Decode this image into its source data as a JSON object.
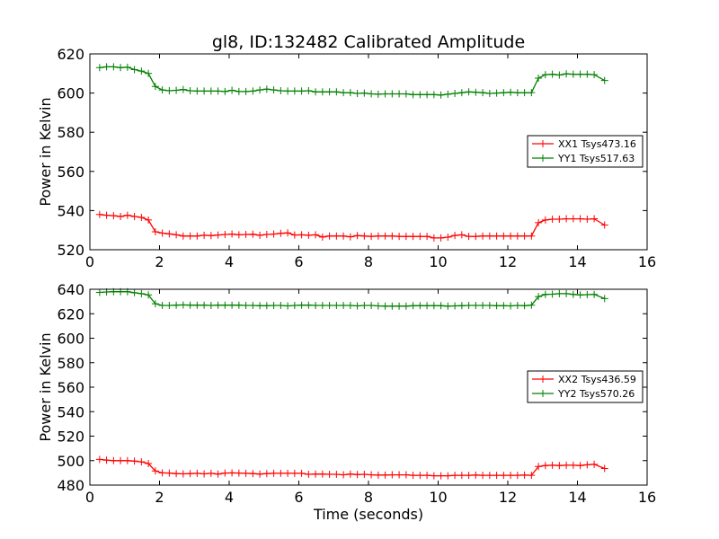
{
  "figure": {
    "title": "gl8, ID:132482 Calibrated Amplitude",
    "xlabel": "Time (seconds)"
  },
  "colors": {
    "red": "#ff0000",
    "green": "#008000"
  },
  "chart_data": [
    {
      "type": "line",
      "title": "gl8, ID:132482 Calibrated Amplitude",
      "xlabel": "",
      "ylabel": "Power in Kelvin",
      "xlim": [
        0,
        16
      ],
      "ylim": [
        520,
        620
      ],
      "xticks": [
        0,
        2,
        4,
        6,
        8,
        10,
        12,
        14,
        16
      ],
      "yticks": [
        520,
        540,
        560,
        580,
        600,
        620
      ],
      "grid": false,
      "legend_position": "right",
      "series": [
        {
          "name": "XX1 Tsys473.16",
          "color": "#ff0000",
          "marker": "+",
          "x": [
            0.28,
            0.48,
            0.68,
            0.88,
            1.08,
            1.28,
            1.48,
            1.68,
            1.88,
            2.08,
            2.28,
            2.48,
            2.68,
            2.88,
            3.08,
            3.28,
            3.48,
            3.68,
            3.88,
            4.08,
            4.28,
            4.48,
            4.68,
            4.88,
            5.08,
            5.28,
            5.48,
            5.68,
            5.88,
            6.08,
            6.28,
            6.48,
            6.68,
            6.88,
            7.08,
            7.28,
            7.48,
            7.68,
            7.88,
            8.08,
            8.28,
            8.48,
            8.68,
            8.88,
            9.08,
            9.28,
            9.48,
            9.68,
            9.88,
            10.08,
            10.28,
            10.48,
            10.68,
            10.88,
            11.08,
            11.28,
            11.48,
            11.68,
            11.88,
            12.08,
            12.28,
            12.48,
            12.68,
            12.88,
            13.08,
            13.28,
            13.48,
            13.68,
            13.88,
            14.08,
            14.28,
            14.48,
            14.78
          ],
          "y": [
            538.0,
            537.6,
            537.4,
            537.0,
            537.6,
            537.0,
            536.5,
            535.2,
            529.2,
            528.5,
            528.1,
            527.6,
            527.0,
            527.0,
            527.0,
            527.4,
            527.2,
            527.5,
            527.8,
            528.0,
            527.6,
            527.8,
            527.9,
            527.4,
            527.8,
            528.0,
            528.4,
            528.6,
            527.5,
            527.6,
            527.4,
            527.6,
            526.5,
            527.0,
            527.0,
            527.0,
            526.6,
            527.2,
            527.0,
            526.8,
            527.0,
            527.0,
            527.0,
            526.8,
            526.8,
            526.8,
            526.8,
            526.8,
            526.0,
            526.0,
            526.4,
            527.3,
            527.6,
            526.8,
            526.8,
            527.0,
            527.0,
            527.0,
            527.0,
            527.0,
            527.0,
            527.0,
            527.0,
            533.8,
            535.2,
            535.6,
            535.6,
            535.8,
            535.8,
            535.8,
            535.6,
            535.8,
            532.6
          ]
        },
        {
          "name": "YY1 Tsys517.63",
          "color": "#008000",
          "marker": "+",
          "x": [
            0.28,
            0.48,
            0.68,
            0.88,
            1.08,
            1.28,
            1.48,
            1.68,
            1.88,
            2.08,
            2.28,
            2.48,
            2.68,
            2.88,
            3.08,
            3.28,
            3.48,
            3.68,
            3.88,
            4.08,
            4.28,
            4.48,
            4.68,
            4.88,
            5.08,
            5.28,
            5.48,
            5.68,
            5.88,
            6.08,
            6.28,
            6.48,
            6.68,
            6.88,
            7.08,
            7.28,
            7.48,
            7.68,
            7.88,
            8.08,
            8.28,
            8.48,
            8.68,
            8.88,
            9.08,
            9.28,
            9.48,
            9.68,
            9.88,
            10.08,
            10.28,
            10.48,
            10.68,
            10.88,
            11.08,
            11.28,
            11.48,
            11.68,
            11.88,
            12.08,
            12.28,
            12.48,
            12.68,
            12.88,
            13.08,
            13.28,
            13.48,
            13.68,
            13.88,
            14.08,
            14.28,
            14.48,
            14.78
          ],
          "y": [
            613.0,
            613.4,
            613.4,
            613.0,
            613.2,
            612.0,
            611.2,
            610.0,
            603.4,
            601.6,
            601.2,
            601.4,
            601.8,
            601.2,
            601.0,
            601.0,
            601.0,
            601.0,
            600.8,
            601.4,
            600.8,
            600.8,
            601.0,
            601.6,
            602.0,
            601.6,
            601.2,
            601.0,
            601.0,
            601.0,
            601.2,
            600.6,
            600.6,
            600.6,
            600.6,
            600.2,
            600.2,
            599.8,
            600.0,
            599.6,
            599.4,
            599.6,
            599.6,
            599.6,
            599.6,
            599.2,
            599.2,
            599.2,
            599.2,
            599.0,
            599.4,
            599.8,
            600.2,
            600.6,
            600.4,
            600.2,
            599.8,
            600.0,
            600.2,
            600.4,
            600.2,
            600.2,
            600.2,
            607.6,
            609.4,
            609.6,
            609.2,
            609.8,
            609.6,
            609.6,
            609.6,
            609.4,
            606.4
          ]
        }
      ]
    },
    {
      "type": "line",
      "title": "",
      "xlabel": "Time (seconds)",
      "ylabel": "Power in Kelvin",
      "xlim": [
        0,
        16
      ],
      "ylim": [
        480,
        640
      ],
      "xticks": [
        0,
        2,
        4,
        6,
        8,
        10,
        12,
        14,
        16
      ],
      "yticks": [
        480,
        500,
        520,
        540,
        560,
        580,
        600,
        620,
        640
      ],
      "grid": false,
      "legend_position": "right",
      "series": [
        {
          "name": "XX2 Tsys436.59",
          "color": "#ff0000",
          "marker": "+",
          "x": [
            0.28,
            0.48,
            0.68,
            0.88,
            1.08,
            1.28,
            1.48,
            1.68,
            1.88,
            2.08,
            2.28,
            2.48,
            2.68,
            2.88,
            3.08,
            3.28,
            3.48,
            3.68,
            3.88,
            4.08,
            4.28,
            4.48,
            4.68,
            4.88,
            5.08,
            5.28,
            5.48,
            5.68,
            5.88,
            6.08,
            6.28,
            6.48,
            6.68,
            6.88,
            7.08,
            7.28,
            7.48,
            7.68,
            7.88,
            8.08,
            8.28,
            8.48,
            8.68,
            8.88,
            9.08,
            9.28,
            9.48,
            9.68,
            9.88,
            10.08,
            10.28,
            10.48,
            10.68,
            10.88,
            11.08,
            11.28,
            11.48,
            11.68,
            11.88,
            12.08,
            12.28,
            12.48,
            12.68,
            12.88,
            13.08,
            13.28,
            13.48,
            13.68,
            13.88,
            14.08,
            14.28,
            14.48,
            14.78
          ],
          "y": [
            501.0,
            500.4,
            500.0,
            500.0,
            500.0,
            499.6,
            499.0,
            497.6,
            491.6,
            490.0,
            489.8,
            489.4,
            489.2,
            489.4,
            489.6,
            489.2,
            489.6,
            489.0,
            489.8,
            490.0,
            489.8,
            489.6,
            489.4,
            489.0,
            489.4,
            489.6,
            489.6,
            489.6,
            489.6,
            489.6,
            488.8,
            489.0,
            489.0,
            488.8,
            488.8,
            488.4,
            489.0,
            488.6,
            488.8,
            488.4,
            488.2,
            488.2,
            488.4,
            488.4,
            488.4,
            488.0,
            488.0,
            488.0,
            487.6,
            487.6,
            487.6,
            488.0,
            488.0,
            488.0,
            488.2,
            488.0,
            488.0,
            488.0,
            488.0,
            488.0,
            488.0,
            488.2,
            488.0,
            495.2,
            496.0,
            496.2,
            496.0,
            496.2,
            496.2,
            496.0,
            496.6,
            497.0,
            493.6
          ]
        },
        {
          "name": "YY2 Tsys570.26",
          "color": "#008000",
          "marker": "+",
          "x": [
            0.28,
            0.48,
            0.68,
            0.88,
            1.08,
            1.28,
            1.48,
            1.68,
            1.88,
            2.08,
            2.28,
            2.48,
            2.68,
            2.88,
            3.08,
            3.28,
            3.48,
            3.68,
            3.88,
            4.08,
            4.28,
            4.48,
            4.68,
            4.88,
            5.08,
            5.28,
            5.48,
            5.68,
            5.88,
            6.08,
            6.28,
            6.48,
            6.68,
            6.88,
            7.08,
            7.28,
            7.48,
            7.68,
            7.88,
            8.08,
            8.28,
            8.48,
            8.68,
            8.88,
            9.08,
            9.28,
            9.48,
            9.68,
            9.88,
            10.08,
            10.28,
            10.48,
            10.68,
            10.88,
            11.08,
            11.28,
            11.48,
            11.68,
            11.88,
            12.08,
            12.28,
            12.48,
            12.68,
            12.88,
            13.08,
            13.28,
            13.48,
            13.68,
            13.88,
            14.08,
            14.28,
            14.48,
            14.78
          ],
          "y": [
            637.4,
            637.8,
            638.0,
            638.0,
            638.0,
            637.2,
            636.4,
            635.4,
            628.2,
            626.8,
            626.8,
            627.0,
            627.2,
            627.0,
            627.0,
            627.0,
            626.8,
            627.0,
            627.0,
            627.0,
            627.0,
            626.8,
            626.8,
            626.6,
            626.6,
            626.8,
            626.8,
            626.4,
            626.8,
            627.0,
            627.0,
            626.8,
            626.8,
            626.8,
            626.8,
            626.8,
            626.8,
            626.4,
            626.8,
            626.8,
            626.4,
            626.2,
            626.2,
            626.2,
            626.2,
            626.6,
            626.6,
            626.6,
            626.6,
            626.6,
            626.2,
            626.4,
            626.6,
            626.8,
            626.8,
            626.8,
            626.8,
            626.6,
            626.6,
            626.4,
            626.8,
            626.6,
            627.0,
            634.0,
            635.8,
            636.0,
            636.4,
            636.4,
            635.8,
            635.4,
            635.6,
            635.8,
            632.4
          ]
        }
      ]
    }
  ]
}
